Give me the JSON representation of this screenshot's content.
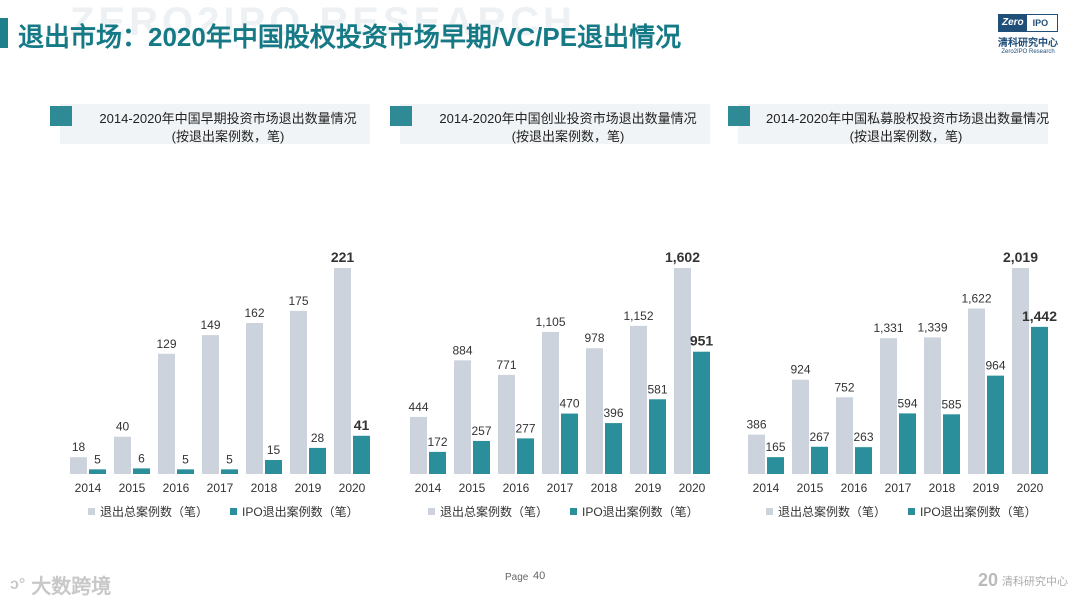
{
  "page": {
    "watermark": "ZERO2IPO RESEARCH",
    "title": "退出市场：2020年中国股权投资市场早期/VC/PE退出情况",
    "page_label": "Page",
    "page_number": "40"
  },
  "logo": {
    "zero": "Zero",
    "ipo": "IPO",
    "cn": "清科研究中心",
    "en": "Zero2IPO Research"
  },
  "footer": {
    "left_mark": "ↄ°",
    "left_text": "大数跨境",
    "right_big": "20",
    "right_text": "清科研究中心"
  },
  "colors": {
    "total": "#ccd3dc",
    "ipo": "#2a8f9a",
    "title": "#157a86"
  },
  "chart_data": [
    {
      "type": "bar",
      "title": "2014-2020年中国早期投资市场退出数量情况",
      "subtitle": "(按退出案例数，笔)",
      "categories": [
        "2014",
        "2015",
        "2016",
        "2017",
        "2018",
        "2019",
        "2020"
      ],
      "series": [
        {
          "name": "退出总案例数（笔）",
          "values": [
            18,
            40,
            129,
            149,
            162,
            175,
            221
          ],
          "labels": [
            "18",
            "40",
            "129",
            "149",
            "162",
            "175",
            "221"
          ]
        },
        {
          "name": "IPO退出案例数（笔）",
          "values": [
            5,
            6,
            5,
            5,
            15,
            28,
            41
          ],
          "labels": [
            "5",
            "6",
            "5",
            "5",
            "15",
            "28",
            "41"
          ]
        }
      ],
      "ymax": 221
    },
    {
      "type": "bar",
      "title": "2014-2020年中国创业投资市场退出数量情况",
      "subtitle": "(按退出案例数，笔)",
      "categories": [
        "2014",
        "2015",
        "2016",
        "2017",
        "2018",
        "2019",
        "2020"
      ],
      "series": [
        {
          "name": "退出总案例数（笔）",
          "values": [
            444,
            884,
            771,
            1105,
            978,
            1152,
            1602
          ],
          "labels": [
            "444",
            "884",
            "771",
            "1,105",
            "978",
            "1,152",
            "1,602"
          ]
        },
        {
          "name": "IPO退出案例数（笔）",
          "values": [
            172,
            257,
            277,
            470,
            396,
            581,
            951
          ],
          "labels": [
            "172",
            "257",
            "277",
            "470",
            "396",
            "581",
            "951"
          ]
        }
      ],
      "ymax": 1602
    },
    {
      "type": "bar",
      "title": "2014-2020年中国私募股权投资市场退出数量情况",
      "subtitle": "(按退出案例数，笔)",
      "categories": [
        "2014",
        "2015",
        "2016",
        "2017",
        "2018",
        "2019",
        "2020"
      ],
      "series": [
        {
          "name": "退出总案例数（笔）",
          "values": [
            386,
            924,
            752,
            1331,
            1339,
            1622,
            2019
          ],
          "labels": [
            "386",
            "924",
            "752",
            "1,331",
            "1,339",
            "1,622",
            "2,019"
          ]
        },
        {
          "name": "IPO退出案例数（笔）",
          "values": [
            165,
            267,
            263,
            594,
            585,
            964,
            1442
          ],
          "labels": [
            "165",
            "267",
            "263",
            "594",
            "585",
            "964",
            "1,442"
          ]
        }
      ],
      "ymax": 2019
    }
  ]
}
